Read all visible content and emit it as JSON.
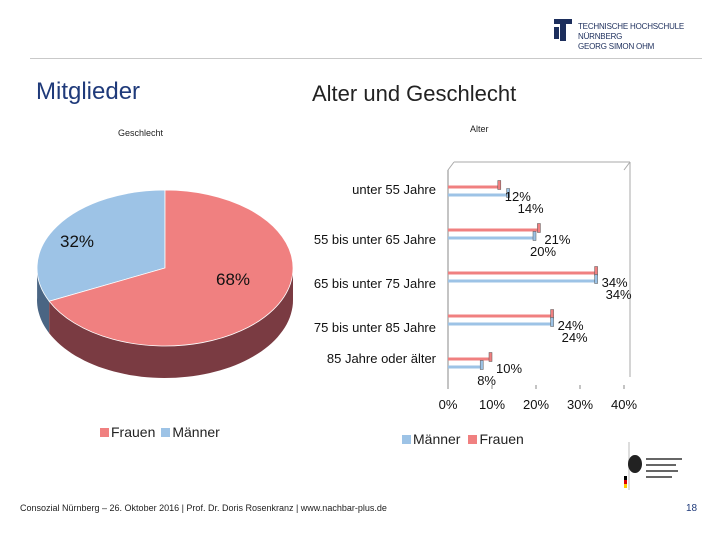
{
  "header": {
    "logo_text_1": "TECHNISCHE HOCHSCHULE NÜRNBERG",
    "logo_text_2": "GEORG SIMON OHM",
    "title_left": "Mitglieder",
    "title_right": "Alter und Geschlecht",
    "subtitle_gender": "Geschlecht",
    "subtitle_age": "Alter"
  },
  "colors": {
    "male": "#9dc3e6",
    "female": "#f08080",
    "female_dark": "#7a3b42",
    "male_dark": "#4a6583",
    "title": "#1f3a7a"
  },
  "chart_data": [
    {
      "type": "pie",
      "title": "Geschlecht",
      "slices": [
        {
          "label": "Frauen",
          "value": 68,
          "display": "68%"
        },
        {
          "label": "Männer",
          "value": 32,
          "display": "32%"
        }
      ],
      "legend": [
        "Frauen",
        "Männer"
      ],
      "legend_position": "bottom"
    },
    {
      "type": "bar",
      "orientation": "horizontal",
      "title": "Alter",
      "categories": [
        "unter 55 Jahre",
        "55 bis unter 65 Jahre",
        "65 bis unter 75 Jahre",
        "75 bis unter 85 Jahre",
        "85 Jahre oder älter"
      ],
      "series": [
        {
          "name": "Frauen",
          "values": [
            12,
            21,
            34,
            24,
            10
          ],
          "labels": [
            "12%",
            "21%",
            "34%",
            "24%",
            "10%"
          ]
        },
        {
          "name": "Männer",
          "values": [
            14,
            20,
            34,
            24,
            8
          ],
          "labels": [
            "14%",
            "20%",
            "34%",
            "24%",
            "8%"
          ]
        }
      ],
      "xlim": [
        0,
        40
      ],
      "xticks": [
        "0%",
        "10%",
        "20%",
        "30%",
        "40%"
      ],
      "legend": [
        "Männer",
        "Frauen"
      ],
      "legend_position": "bottom"
    }
  ],
  "footer": {
    "text": "Consozial Nürnberg – 26. Oktober 2016 | Prof. Dr. Doris Rosenkranz | www.nachbar-plus.de",
    "page": "18"
  }
}
